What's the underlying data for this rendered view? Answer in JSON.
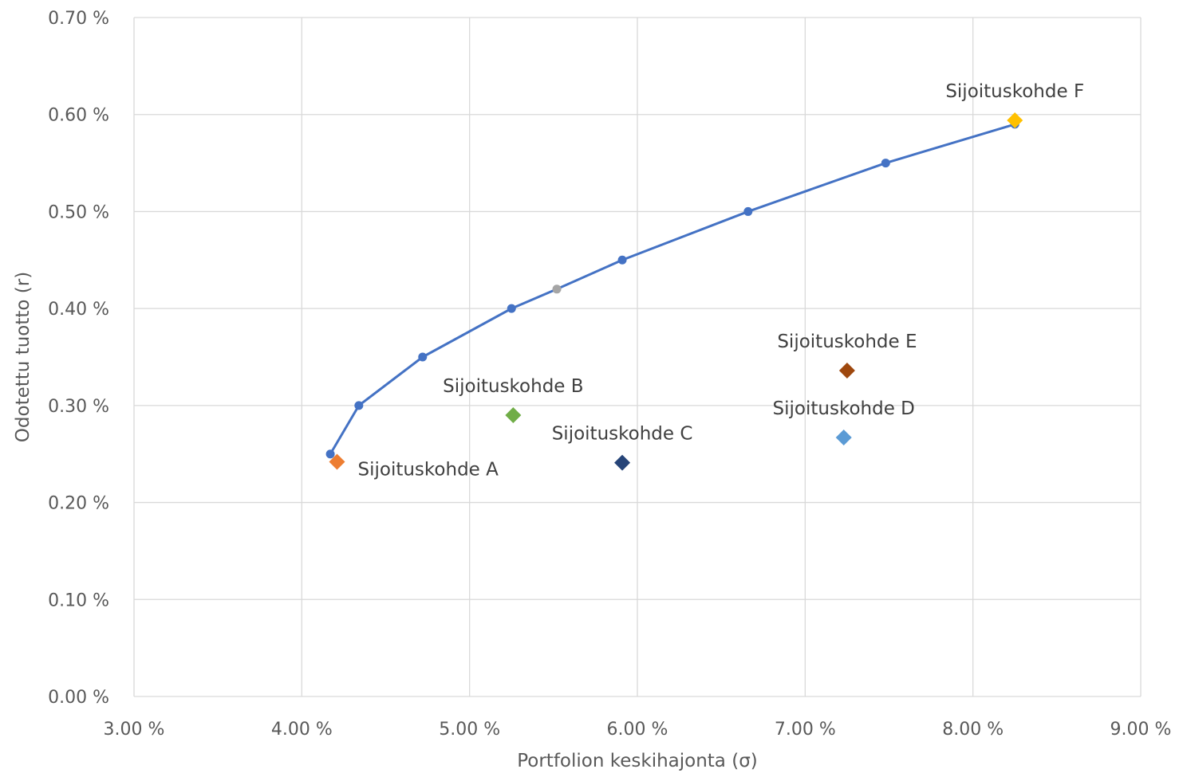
{
  "chart_data": {
    "type": "scatter",
    "title": "",
    "xlabel": "Portfolion keskihajonta (σ)",
    "ylabel": "Odotettu tuotto (r)",
    "xlim": [
      3.0,
      9.0
    ],
    "ylim": [
      0.0,
      0.7
    ],
    "x_ticks": [
      3.0,
      4.0,
      5.0,
      6.0,
      7.0,
      8.0,
      9.0
    ],
    "y_ticks": [
      0.0,
      0.1,
      0.2,
      0.3,
      0.4,
      0.5,
      0.6,
      0.7
    ],
    "x_tick_labels": [
      "3.00 %",
      "4.00 %",
      "5.00 %",
      "6.00 %",
      "7.00 %",
      "8.00 %",
      "9.00 %"
    ],
    "y_tick_labels": [
      "0.00 %",
      "0.10 %",
      "0.20 %",
      "0.30 %",
      "0.40 %",
      "0.50 %",
      "0.60 %",
      "0.70 %"
    ],
    "grid": true,
    "legend": "none",
    "frontier": {
      "color": "#4472c4",
      "points": [
        {
          "x": 4.17,
          "y": 0.25
        },
        {
          "x": 4.34,
          "y": 0.3
        },
        {
          "x": 4.72,
          "y": 0.35
        },
        {
          "x": 5.25,
          "y": 0.4
        },
        {
          "x": 5.52,
          "y": 0.42,
          "color": "#a5a5a5"
        },
        {
          "x": 5.91,
          "y": 0.45
        },
        {
          "x": 6.66,
          "y": 0.5
        },
        {
          "x": 7.48,
          "y": 0.55
        },
        {
          "x": 8.25,
          "y": 0.59
        }
      ]
    },
    "assets": [
      {
        "name": "Sijoituskohde A",
        "x": 4.21,
        "y": 0.242,
        "color": "#ed7d31",
        "label_pos": "right-below"
      },
      {
        "name": "Sijoituskohde B",
        "x": 5.26,
        "y": 0.29,
        "color": "#70ad47",
        "label_pos": "above"
      },
      {
        "name": "Sijoituskohde C",
        "x": 5.91,
        "y": 0.241,
        "color": "#264478",
        "label_pos": "above"
      },
      {
        "name": "Sijoituskohde D",
        "x": 7.23,
        "y": 0.267,
        "color": "#5b9bd5",
        "label_pos": "above"
      },
      {
        "name": "Sijoituskohde E",
        "x": 7.25,
        "y": 0.336,
        "color": "#9e480e",
        "label_pos": "above"
      },
      {
        "name": "Sijoituskohde F",
        "x": 8.25,
        "y": 0.594,
        "color": "#ffc000",
        "label_pos": "above"
      }
    ]
  }
}
